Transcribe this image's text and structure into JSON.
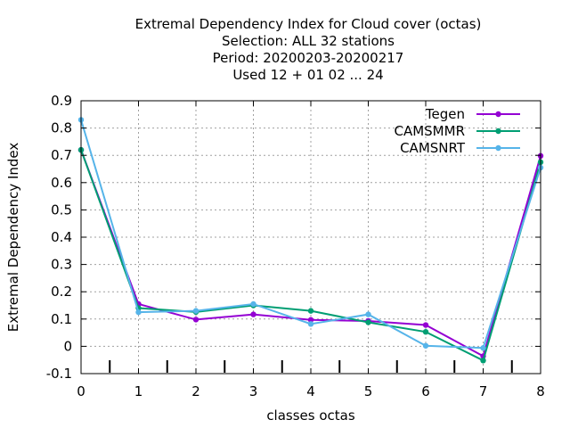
{
  "chart_data": {
    "type": "line",
    "title_lines": [
      "Extremal Dependency Index  for Cloud cover (octas)",
      "Selection: ALL     32 stations",
      "Period: 20200203-20200217",
      "Used  12 + 01 02 ... 24"
    ],
    "xlabel": "classes octas",
    "ylabel": "Extremal Dependency Index",
    "x": [
      0,
      1,
      2,
      3,
      4,
      5,
      6,
      7,
      8
    ],
    "xlim": [
      0,
      8
    ],
    "ylim": [
      -0.1,
      0.9
    ],
    "xticks": [
      "0",
      "1",
      "2",
      "3",
      "4",
      "5",
      "6",
      "7",
      "8"
    ],
    "yticks": [
      "-0.1",
      "0",
      "0.1",
      "0.2",
      "0.3",
      "0.4",
      "0.5",
      "0.6",
      "0.7",
      "0.8",
      "0.9"
    ],
    "minor_xticks": [
      0.5,
      1.5,
      2.5,
      3.5,
      4.5,
      5.5,
      6.5,
      7.5
    ],
    "grid": true,
    "legend_position": "top-right",
    "series": [
      {
        "name": "Tegen",
        "color": "#9400d3",
        "values": [
          0.72,
          0.155,
          0.098,
          0.117,
          0.097,
          0.093,
          0.078,
          -0.036,
          0.698
        ]
      },
      {
        "name": "CAMSMMR",
        "color": "#009e73",
        "values": [
          0.72,
          0.14,
          0.126,
          0.15,
          0.13,
          0.088,
          0.053,
          -0.052,
          0.675
        ]
      },
      {
        "name": "CAMSNRT",
        "color": "#56b4e9",
        "values": [
          0.83,
          0.125,
          0.13,
          0.155,
          0.082,
          0.117,
          0.002,
          -0.006,
          0.655
        ]
      }
    ]
  }
}
